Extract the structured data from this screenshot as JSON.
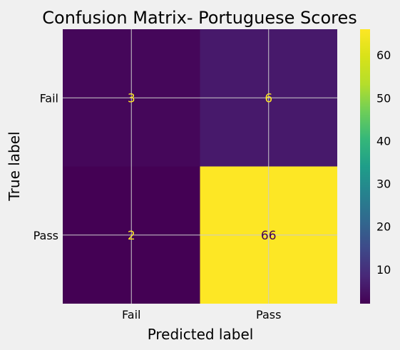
{
  "chart_data": {
    "type": "heatmap",
    "title": "Confusion Matrix- Portuguese Scores",
    "xlabel": "Predicted label",
    "ylabel": "True label",
    "x_categories": [
      "Fail",
      "Pass"
    ],
    "y_categories": [
      "Fail",
      "Pass"
    ],
    "values": [
      [
        3,
        6
      ],
      [
        2,
        66
      ]
    ],
    "colormap": "viridis",
    "colorbar": {
      "min": 2,
      "max": 66,
      "ticks": [
        10,
        20,
        30,
        40,
        50,
        60
      ]
    },
    "grid": true,
    "colors": {
      "background": "#f0f0f0",
      "grid": "#cbcbcb",
      "label_on_dark": "#fde725",
      "label_on_light": "#440154"
    }
  }
}
